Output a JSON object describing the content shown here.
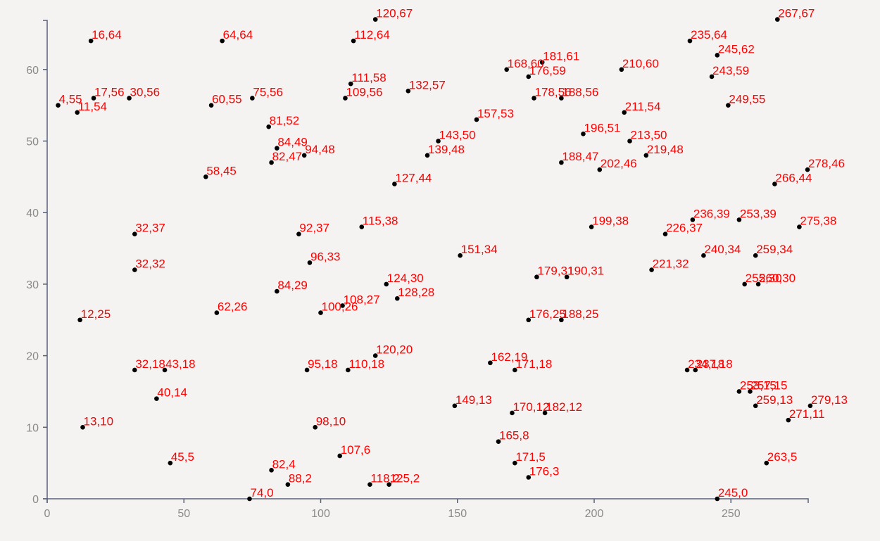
{
  "chart_data": {
    "type": "scatter",
    "title": "",
    "xlabel": "",
    "ylabel": "",
    "xlim": [
      0,
      278
    ],
    "ylim": [
      0,
      67
    ],
    "x_ticks": [
      0,
      50,
      100,
      150,
      200,
      250
    ],
    "y_ticks": [
      0,
      10,
      20,
      30,
      40,
      50,
      60
    ],
    "grid": false,
    "legend": "none",
    "point_color": "#000000",
    "label_color": "#ff0000",
    "points": [
      {
        "x": 120,
        "y": 67,
        "label": "120,67"
      },
      {
        "x": 267,
        "y": 67,
        "label": "267,67"
      },
      {
        "x": 16,
        "y": 64,
        "label": "16,64"
      },
      {
        "x": 64,
        "y": 64,
        "label": "64,64"
      },
      {
        "x": 112,
        "y": 64,
        "label": "112,64"
      },
      {
        "x": 235,
        "y": 64,
        "label": "235,64"
      },
      {
        "x": 245,
        "y": 62,
        "label": "245,62"
      },
      {
        "x": 181,
        "y": 61,
        "label": "181,61"
      },
      {
        "x": 168,
        "y": 60,
        "label": "168,60"
      },
      {
        "x": 210,
        "y": 60,
        "label": "210,60"
      },
      {
        "x": 176,
        "y": 59,
        "label": "176,59"
      },
      {
        "x": 243,
        "y": 59,
        "label": "243,59"
      },
      {
        "x": 111,
        "y": 58,
        "label": "111,58"
      },
      {
        "x": 132,
        "y": 57,
        "label": "132,57"
      },
      {
        "x": 17,
        "y": 56,
        "label": "17,56"
      },
      {
        "x": 30,
        "y": 56,
        "label": "30,56"
      },
      {
        "x": 75,
        "y": 56,
        "label": "75,56"
      },
      {
        "x": 109,
        "y": 56,
        "label": "109,56"
      },
      {
        "x": 178,
        "y": 56,
        "label": "178,56"
      },
      {
        "x": 188,
        "y": 56,
        "label": "188,56"
      },
      {
        "x": 4,
        "y": 55,
        "label": "4,55"
      },
      {
        "x": 60,
        "y": 55,
        "label": "60,55"
      },
      {
        "x": 249,
        "y": 55,
        "label": "249,55"
      },
      {
        "x": 11,
        "y": 54,
        "label": "11,54"
      },
      {
        "x": 211,
        "y": 54,
        "label": "211,54"
      },
      {
        "x": 157,
        "y": 53,
        "label": "157,53"
      },
      {
        "x": 81,
        "y": 52,
        "label": "81,52"
      },
      {
        "x": 196,
        "y": 51,
        "label": "196,51"
      },
      {
        "x": 143,
        "y": 50,
        "label": "143,50"
      },
      {
        "x": 213,
        "y": 50,
        "label": "213,50"
      },
      {
        "x": 84,
        "y": 49,
        "label": "84,49"
      },
      {
        "x": 94,
        "y": 48,
        "label": "94,48"
      },
      {
        "x": 139,
        "y": 48,
        "label": "139,48"
      },
      {
        "x": 219,
        "y": 48,
        "label": "219,48"
      },
      {
        "x": 82,
        "y": 47,
        "label": "82,47"
      },
      {
        "x": 188,
        "y": 47,
        "label": "188,47"
      },
      {
        "x": 202,
        "y": 46,
        "label": "202,46"
      },
      {
        "x": 278,
        "y": 46,
        "label": "278,46"
      },
      {
        "x": 58,
        "y": 45,
        "label": "58,45"
      },
      {
        "x": 127,
        "y": 44,
        "label": "127,44"
      },
      {
        "x": 266,
        "y": 44,
        "label": "266,44"
      },
      {
        "x": 236,
        "y": 39,
        "label": "236,39"
      },
      {
        "x": 253,
        "y": 39,
        "label": "253,39"
      },
      {
        "x": 115,
        "y": 38,
        "label": "115,38"
      },
      {
        "x": 199,
        "y": 38,
        "label": "199,38"
      },
      {
        "x": 275,
        "y": 38,
        "label": "275,38"
      },
      {
        "x": 32,
        "y": 37,
        "label": "32,37"
      },
      {
        "x": 92,
        "y": 37,
        "label": "92,37"
      },
      {
        "x": 226,
        "y": 37,
        "label": "226,37"
      },
      {
        "x": 151,
        "y": 34,
        "label": "151,34"
      },
      {
        "x": 240,
        "y": 34,
        "label": "240,34"
      },
      {
        "x": 259,
        "y": 34,
        "label": "259,34"
      },
      {
        "x": 96,
        "y": 33,
        "label": "96,33"
      },
      {
        "x": 32,
        "y": 32,
        "label": "32,32"
      },
      {
        "x": 221,
        "y": 32,
        "label": "221,32"
      },
      {
        "x": 179,
        "y": 31,
        "label": "179,31"
      },
      {
        "x": 190,
        "y": 31,
        "label": "190,31"
      },
      {
        "x": 124,
        "y": 30,
        "label": "124,30"
      },
      {
        "x": 255,
        "y": 30,
        "label": "255,30"
      },
      {
        "x": 260,
        "y": 30,
        "label": "260,30"
      },
      {
        "x": 84,
        "y": 29,
        "label": "84,29"
      },
      {
        "x": 128,
        "y": 28,
        "label": "128,28"
      },
      {
        "x": 108,
        "y": 27,
        "label": "108,27"
      },
      {
        "x": 62,
        "y": 26,
        "label": "62,26"
      },
      {
        "x": 100,
        "y": 26,
        "label": "100,26"
      },
      {
        "x": 12,
        "y": 25,
        "label": "12,25"
      },
      {
        "x": 176,
        "y": 25,
        "label": "176,25"
      },
      {
        "x": 188,
        "y": 25,
        "label": "188,25"
      },
      {
        "x": 120,
        "y": 20,
        "label": "120,20"
      },
      {
        "x": 162,
        "y": 19,
        "label": "162,19"
      },
      {
        "x": 32,
        "y": 18,
        "label": "32,18"
      },
      {
        "x": 43,
        "y": 18,
        "label": "43,18"
      },
      {
        "x": 95,
        "y": 18,
        "label": "95,18"
      },
      {
        "x": 110,
        "y": 18,
        "label": "110,18"
      },
      {
        "x": 171,
        "y": 18,
        "label": "171,18"
      },
      {
        "x": 234,
        "y": 18,
        "label": "234,18"
      },
      {
        "x": 237,
        "y": 18,
        "label": "237,18"
      },
      {
        "x": 253,
        "y": 15,
        "label": "253,15"
      },
      {
        "x": 257,
        "y": 15,
        "label": "257,15"
      },
      {
        "x": 40,
        "y": 14,
        "label": "40,14"
      },
      {
        "x": 149,
        "y": 13,
        "label": "149,13"
      },
      {
        "x": 259,
        "y": 13,
        "label": "259,13"
      },
      {
        "x": 279,
        "y": 13,
        "label": "279,13"
      },
      {
        "x": 170,
        "y": 12,
        "label": "170,12"
      },
      {
        "x": 182,
        "y": 12,
        "label": "182,12"
      },
      {
        "x": 271,
        "y": 11,
        "label": "271,11"
      },
      {
        "x": 13,
        "y": 10,
        "label": "13,10"
      },
      {
        "x": 98,
        "y": 10,
        "label": "98,10"
      },
      {
        "x": 165,
        "y": 8,
        "label": "165,8"
      },
      {
        "x": 107,
        "y": 6,
        "label": "107,6"
      },
      {
        "x": 45,
        "y": 5,
        "label": "45,5"
      },
      {
        "x": 171,
        "y": 5,
        "label": "171,5"
      },
      {
        "x": 263,
        "y": 5,
        "label": "263,5"
      },
      {
        "x": 82,
        "y": 4,
        "label": "82,4"
      },
      {
        "x": 176,
        "y": 3,
        "label": "176,3"
      },
      {
        "x": 88,
        "y": 2,
        "label": "88,2"
      },
      {
        "x": 118,
        "y": 2,
        "label": "118,2"
      },
      {
        "x": 125,
        "y": 2,
        "label": "125,2"
      },
      {
        "x": 74,
        "y": 0,
        "label": "74,0"
      },
      {
        "x": 245,
        "y": 0,
        "label": "245,0"
      }
    ]
  }
}
